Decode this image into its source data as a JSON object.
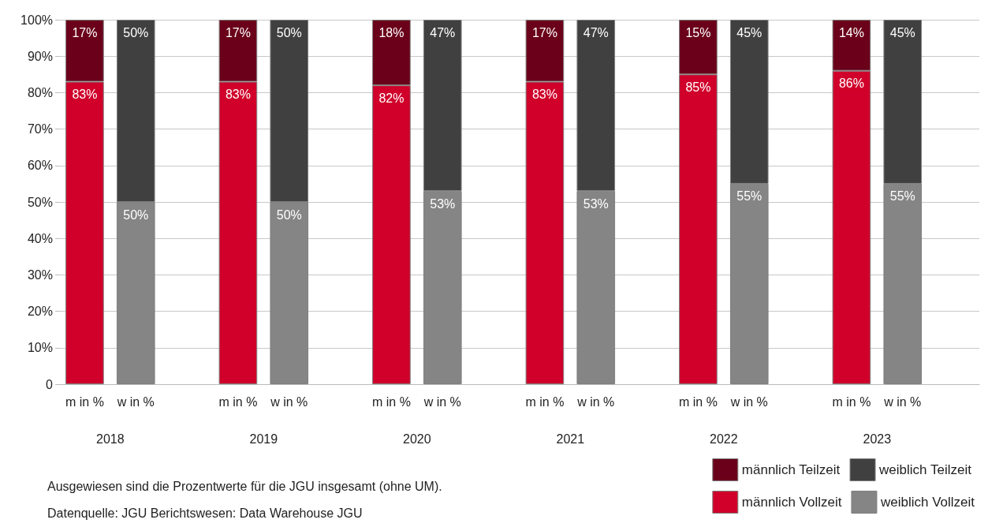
{
  "chart_data": {
    "type": "bar",
    "stacked": true,
    "categories": [
      "m in %",
      "w in %",
      null,
      "m in %",
      "w in %",
      null,
      "m in %",
      "w in %",
      null,
      "m in %",
      "w in %",
      null,
      "m in %",
      "w in %",
      null,
      "m in %",
      "w in %",
      null
    ],
    "series": [
      {
        "name": "männlich Vollzeit",
        "color": "#d0002a",
        "values": [
          83,
          null,
          null,
          83,
          null,
          null,
          82,
          null,
          null,
          83,
          null,
          null,
          85,
          null,
          null,
          86,
          null,
          null
        ],
        "value_labels": [
          "83%",
          null,
          null,
          "83%",
          null,
          null,
          "82%",
          null,
          null,
          "83%",
          null,
          null,
          "85%",
          null,
          null,
          "86%",
          null,
          null
        ]
      },
      {
        "name": "männlich Teilzeit",
        "color": "#6a0019",
        "values": [
          17,
          null,
          null,
          17,
          null,
          null,
          18,
          null,
          null,
          17,
          null,
          null,
          15,
          null,
          null,
          14,
          null,
          null
        ],
        "value_labels": [
          "17%",
          null,
          null,
          "17%",
          null,
          null,
          "18%",
          null,
          null,
          "17%",
          null,
          null,
          "15%",
          null,
          null,
          "14%",
          null,
          null
        ]
      },
      {
        "name": "weiblich Vollzeit",
        "color": "#858585",
        "values": [
          null,
          50,
          null,
          null,
          50,
          null,
          null,
          53,
          null,
          null,
          53,
          null,
          null,
          55,
          null,
          null,
          55,
          null
        ],
        "value_labels": [
          null,
          "50%",
          null,
          null,
          "50%",
          null,
          null,
          "53%",
          null,
          null,
          "53%",
          null,
          null,
          "55%",
          null,
          null,
          "55%",
          null
        ]
      },
      {
        "name": "weiblich Teilzeit",
        "color": "#404040",
        "values": [
          null,
          50,
          null,
          null,
          50,
          null,
          null,
          47,
          null,
          null,
          47,
          null,
          null,
          45,
          null,
          null,
          45,
          null
        ],
        "value_labels": [
          null,
          "50%",
          null,
          null,
          "50%",
          null,
          null,
          "47%",
          null,
          null,
          "47%",
          null,
          null,
          "45%",
          null,
          null,
          "45%",
          null
        ]
      }
    ],
    "ylim": [
      0,
      100
    ],
    "yticks": [
      {
        "value": 0,
        "label": "0"
      },
      {
        "value": 10,
        "label": "10%"
      },
      {
        "value": 20,
        "label": "20%"
      },
      {
        "value": 30,
        "label": "30%"
      },
      {
        "value": 40,
        "label": "40%"
      },
      {
        "value": 50,
        "label": "50%"
      },
      {
        "value": 60,
        "label": "60%"
      },
      {
        "value": 70,
        "label": "70%"
      },
      {
        "value": 80,
        "label": "80%"
      },
      {
        "value": 90,
        "label": "90%"
      },
      {
        "value": 100,
        "label": "100%"
      }
    ],
    "grid": "y",
    "legend": "bottom right",
    "annotations": [
      "2018",
      "2019",
      "2020",
      "2021",
      "2022",
      "2023",
      "Ausgewiesen sind die Prozentwerte für die JGU insgesamt (ohne UM).",
      "Datenquelle: JGU Berichtswesen: Data Warehouse JGU"
    ]
  }
}
